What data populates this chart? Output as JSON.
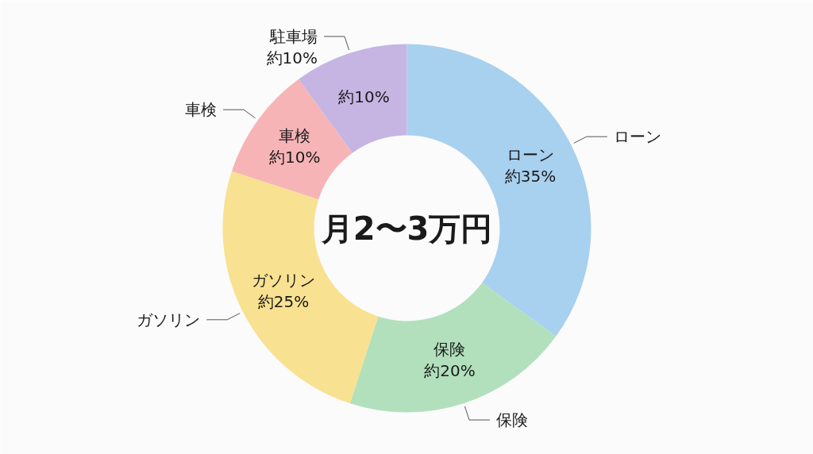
{
  "chart_data": {
    "type": "donut",
    "categories": [
      "ローン",
      "保険",
      "ガソリン",
      "車検",
      "駐車場約10%"
    ],
    "values": [
      35,
      20,
      25,
      10,
      10
    ],
    "colors": [
      "#a8d0ef",
      "#b2e0bd",
      "#f8e190",
      "#f7b4b6",
      "#c6b5e3"
    ],
    "value_labels": [
      "ローン約35%",
      "保険約20%",
      "ガソリン約25%",
      "車検約10%",
      "約10%"
    ],
    "annotations": [
      "月2〜3万円"
    ]
  }
}
